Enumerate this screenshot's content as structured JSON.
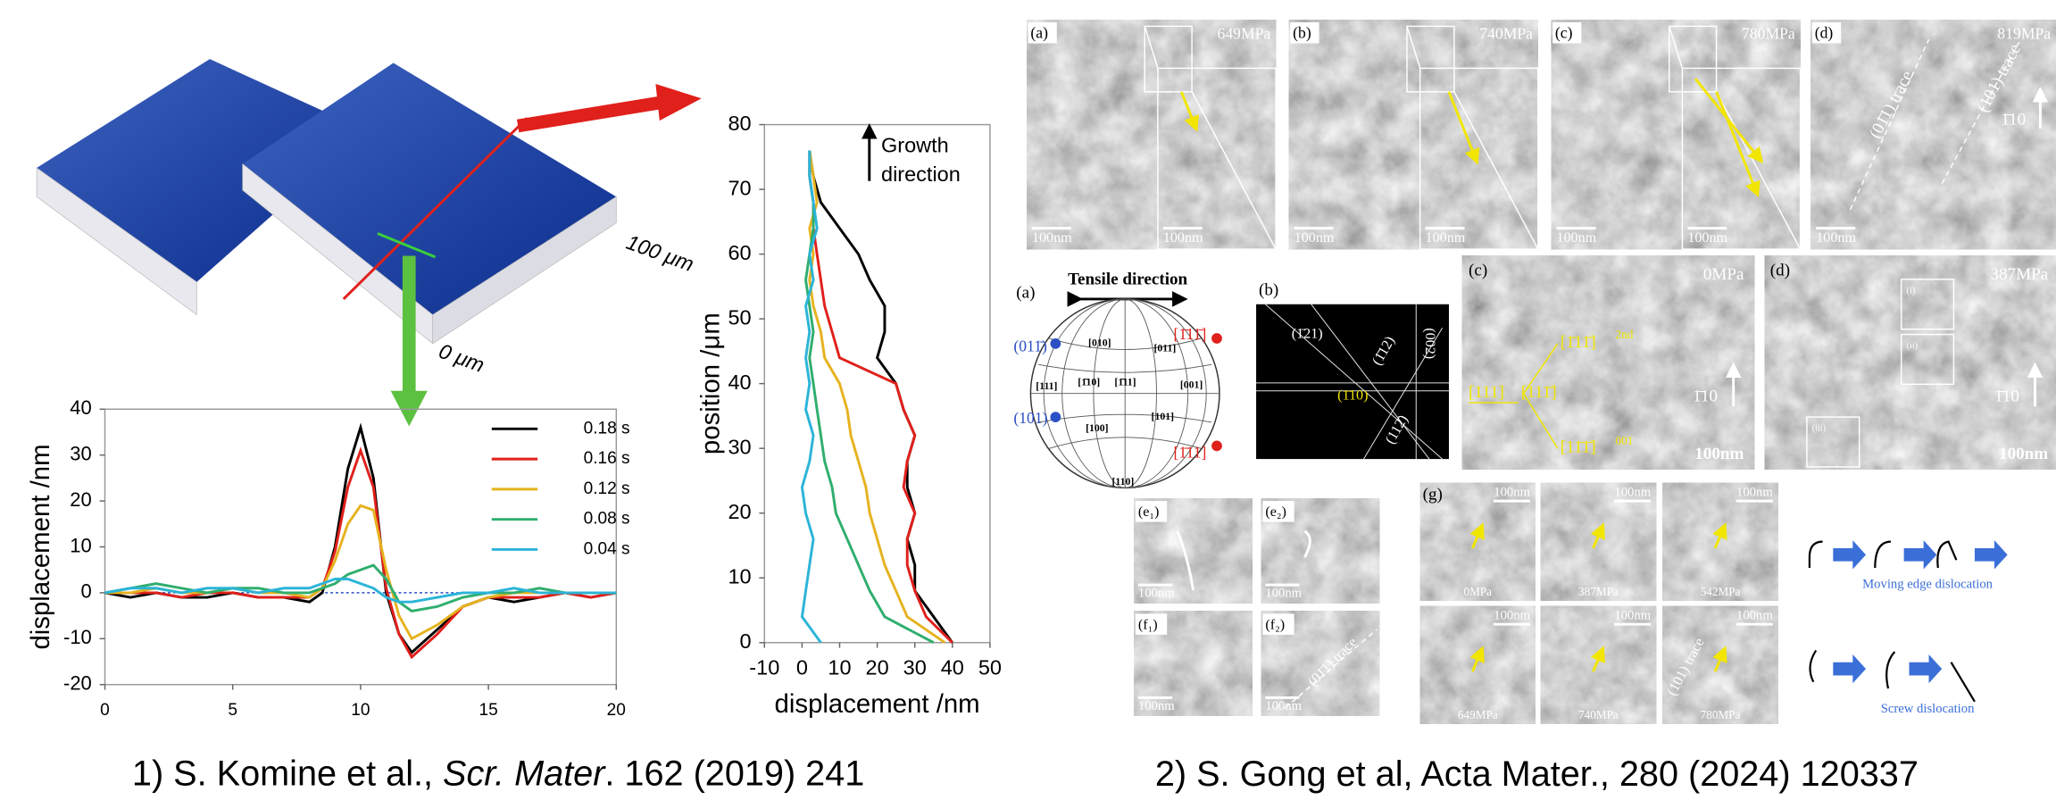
{
  "left": {
    "surface_labels": [
      "100 μm",
      "0 μm"
    ],
    "caption": [
      "1) S. Komine et al., ",
      "Scr. Mater",
      ". 162 (2019) 241"
    ]
  },
  "chart_data": [
    {
      "type": "line",
      "x": [
        0,
        1,
        2,
        3,
        4,
        5,
        6,
        7,
        8,
        8.5,
        9,
        9.5,
        10,
        10.5,
        11,
        11.5,
        12,
        13,
        14,
        15,
        16,
        17,
        18,
        19,
        20
      ],
      "series": [
        {
          "name": "0.18 s",
          "color": "#000000",
          "values": [
            0,
            -1,
            0,
            -1,
            -1,
            0,
            -1,
            -1,
            -2,
            0,
            10,
            27,
            36,
            25,
            0,
            -9,
            -13,
            -8,
            -3,
            -1,
            -2,
            -1,
            0,
            -1,
            0
          ]
        },
        {
          "name": "0.16 s",
          "color": "#e0201b",
          "values": [
            0,
            0,
            0,
            -1,
            0,
            0,
            -1,
            -1,
            -1,
            1,
            9,
            23,
            31,
            23,
            1,
            -9,
            -14,
            -9,
            -3,
            -1,
            -1,
            -1,
            0,
            -1,
            0
          ]
        },
        {
          "name": "0.12 s",
          "color": "#e6b21e",
          "values": [
            0,
            0,
            1,
            0,
            0,
            1,
            0,
            0,
            -1,
            1,
            7,
            15,
            19,
            18,
            5,
            -5,
            -10,
            -7,
            -3,
            -1,
            0,
            0,
            0,
            0,
            0
          ]
        },
        {
          "name": "0.08 s",
          "color": "#2fae6e",
          "values": [
            0,
            1,
            2,
            1,
            0,
            1,
            1,
            0,
            0,
            1,
            2,
            4,
            5,
            6,
            3,
            -2,
            -4,
            -3,
            -1,
            0,
            0,
            1,
            0,
            0,
            0
          ]
        },
        {
          "name": "0.04 s",
          "color": "#2bb4d8",
          "values": [
            0,
            1,
            1,
            0,
            1,
            1,
            0,
            1,
            1,
            2,
            3,
            3,
            2,
            1,
            -1,
            -2,
            -2,
            -1,
            0,
            0,
            1,
            0,
            0,
            0,
            0
          ]
        }
      ],
      "xlim": [
        0,
        20
      ],
      "ylim": [
        -20,
        40
      ],
      "xticks": [
        0,
        5,
        10,
        15,
        20
      ],
      "yticks": [
        -20,
        -10,
        0,
        10,
        20,
        30,
        40
      ],
      "y_label": "displacement /nm",
      "legend": "upper right"
    },
    {
      "type": "line",
      "y": [
        0,
        4,
        8,
        12,
        16,
        20,
        24,
        28,
        32,
        36,
        40,
        44,
        48,
        52,
        56,
        60,
        64,
        68,
        72,
        76
      ],
      "series": [
        {
          "color": "#000000",
          "values": [
            40,
            35,
            30,
            30,
            28,
            30,
            28,
            28,
            30,
            27,
            25,
            20,
            22,
            22,
            18,
            15,
            10,
            5,
            3,
            2
          ]
        },
        {
          "color": "#e0201b",
          "values": [
            40,
            33,
            30,
            28,
            28,
            30,
            27,
            28,
            30,
            27,
            25,
            10,
            8,
            6,
            5,
            4,
            3,
            3,
            2,
            2
          ]
        },
        {
          "color": "#e6b21e",
          "values": [
            38,
            28,
            25,
            22,
            20,
            18,
            17,
            15,
            13,
            12,
            10,
            6,
            5,
            3,
            2,
            3,
            2,
            4,
            3,
            2
          ]
        },
        {
          "color": "#2fae6e",
          "values": [
            35,
            22,
            18,
            15,
            12,
            9,
            8,
            6,
            5,
            4,
            3,
            2,
            3,
            2,
            1,
            2,
            3,
            3,
            2,
            2
          ]
        },
        {
          "color": "#2bb4d8",
          "values": [
            5,
            0,
            1,
            2,
            3,
            1,
            0,
            2,
            3,
            1,
            2,
            1,
            2,
            1,
            3,
            2,
            4,
            3,
            2,
            2
          ]
        }
      ],
      "xlim": [
        -10,
        50
      ],
      "ylim": [
        0,
        80
      ],
      "xticks": [
        -10,
        0,
        10,
        20,
        30,
        40,
        50
      ],
      "yticks": [
        0,
        10,
        20,
        30,
        40,
        50,
        60,
        70,
        80
      ],
      "x_label": "displacement /nm",
      "y_label": "position /μm",
      "annotation": [
        "Growth",
        "direction"
      ]
    }
  ],
  "right": {
    "top_row": [
      {
        "label": "(a)",
        "stress": "649MPa"
      },
      {
        "label": "(b)",
        "stress": "740MPa"
      },
      {
        "label": "(c)",
        "stress": "780MPa"
      },
      {
        "label": "(d)",
        "stress": "819MPa"
      }
    ],
    "scale_bar": "100nm",
    "direction": "1̄10",
    "traces": [
      "(01̄1) trace",
      "(101) trace"
    ],
    "stereo": {
      "label": "(a)",
      "title": "Tensile direction",
      "red_poles": [
        "[1̄11̄]",
        "[1̄11]"
      ],
      "blue_poles": [
        "(011̄)",
        "(101)"
      ],
      "poles": [
        "[010]",
        "[011]",
        "[111]",
        "[1̄10]",
        "[1̄11]",
        "[001]",
        "[100]",
        "[101]",
        "[110]"
      ]
    },
    "diffraction": {
      "label": "(b)",
      "planes": [
        "(1̄21)",
        "(1̄12)",
        "(002)",
        "(112̄)"
      ],
      "beam": "(1̄10)"
    },
    "panel_c": {
      "label": "(c)",
      "stress": "0MPa",
      "vectors": [
        "[1̄11̄]",
        "2nd",
        "[111]",
        "[111̄]",
        "[11̄1̄]",
        "001"
      ]
    },
    "panel_d": {
      "label": "(d)",
      "stress": "387MPa",
      "boxes": [
        "(i)",
        "(ii)",
        "(iii)"
      ]
    },
    "small_panels": [
      "(e₁)",
      "(e₂)",
      "(f₁)",
      "(f₂)"
    ],
    "panel_g": {
      "label": "(g)",
      "stresses": [
        "0MPa",
        "387MPa",
        "542MPa",
        "649MPa",
        "740MPa",
        "780MPa"
      ]
    },
    "schematic": [
      "Moving edge dislocation",
      "Screw dislocation"
    ],
    "caption": "2) S. Gong et al, Acta Mater., 280 (2024) 120337"
  }
}
